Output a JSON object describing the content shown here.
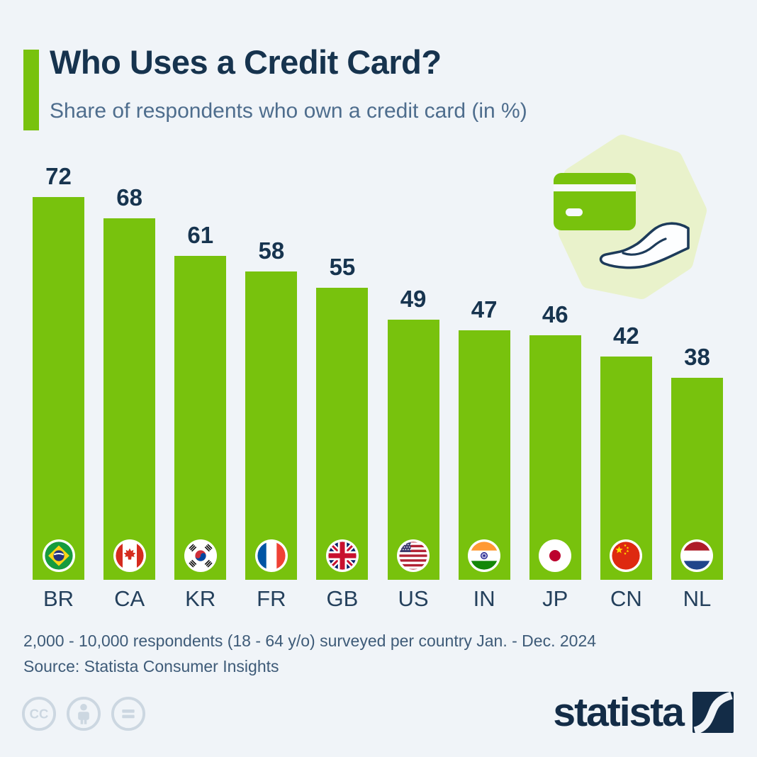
{
  "header": {
    "title": "Who Uses a Credit Card?",
    "subtitle": "Share of respondents who own a credit card (in %)"
  },
  "chart_data": {
    "type": "bar",
    "categories": [
      "BR",
      "CA",
      "KR",
      "FR",
      "GB",
      "US",
      "IN",
      "JP",
      "CN",
      "NL"
    ],
    "values": [
      72,
      68,
      61,
      58,
      55,
      49,
      47,
      46,
      42,
      38
    ],
    "flags": [
      "br",
      "ca",
      "kr",
      "fr",
      "gb",
      "us",
      "in",
      "jp",
      "cn",
      "nl"
    ],
    "title": "Who Uses a Credit Card?",
    "xlabel": "",
    "ylabel": "Share of respondents who own a credit card (in %)",
    "ylim": [
      0,
      77
    ],
    "grid": false,
    "legend": false,
    "value_labels": true,
    "bar_color": "#78c20d",
    "label_color": "#17344f"
  },
  "footnote": {
    "line1": "2,000 - 10,000 respondents (18 - 64 y/o) surveyed per country Jan. - Dec. 2024",
    "line2": "Source: Statista Consumer Insights"
  },
  "license": {
    "icons": [
      "cc",
      "by",
      "nd"
    ]
  },
  "branding": {
    "logo_text": "statista"
  },
  "colors": {
    "background": "#f0f4f8",
    "accent_green": "#78c20d",
    "pale_green_blob": "#e9f2cb",
    "title_navy": "#16334e",
    "subtitle_blue_gray": "#4e6d8d",
    "footnote_blue_gray": "#3e5b78",
    "license_gray": "#ccd7e1",
    "logo_navy": "#132c47"
  }
}
